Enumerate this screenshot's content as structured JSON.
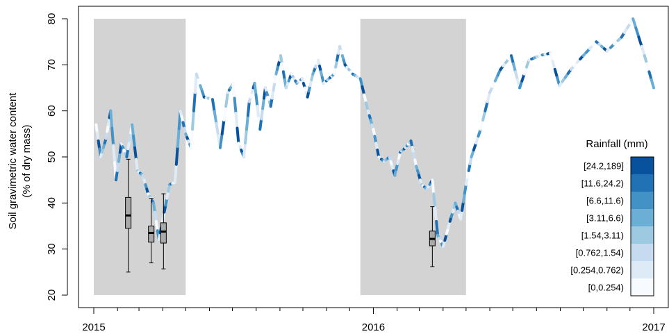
{
  "chart_data": {
    "type": "line",
    "ylabel_line1": "Soil gravimetric water content",
    "ylabel_line2": "(% of dry mass)",
    "ylim": [
      20,
      80
    ],
    "yticks": [
      20,
      30,
      40,
      50,
      60,
      70,
      80
    ],
    "xlim": [
      "2015-01-01",
      "2017-01-01"
    ],
    "xticks": [
      {
        "date": "2015-01-01",
        "label": "2015"
      },
      {
        "date": "2016-01-01",
        "label": "2016"
      },
      {
        "date": "2017-01-01",
        "label": "2017"
      }
    ],
    "shaded_periods": [
      {
        "start": "2015-01-01",
        "end": "2015-05-01",
        "ymin": 20,
        "ymax": 80
      },
      {
        "start": "2015-12-15",
        "end": "2016-05-01",
        "ymin": 20,
        "ymax": 80
      }
    ],
    "series": [
      {
        "points": [
          [
            "2015-01-04",
            57.0
          ],
          [
            "2015-01-10",
            50.0
          ],
          [
            "2015-01-17",
            54.0
          ],
          [
            "2015-01-23",
            60.0
          ],
          [
            "2015-01-30",
            45.0
          ],
          [
            "2015-02-06",
            53.0
          ],
          [
            "2015-02-13",
            50.0
          ],
          [
            "2015-02-20",
            57.0
          ],
          [
            "2015-02-27",
            47.0
          ],
          [
            "2015-03-06",
            46.0
          ],
          [
            "2015-03-13",
            42.0
          ],
          [
            "2015-03-20",
            40.0
          ],
          [
            "2015-03-27",
            32.0
          ],
          [
            "2015-04-03",
            38.0
          ],
          [
            "2015-04-10",
            44.0
          ],
          [
            "2015-04-17",
            44.5
          ],
          [
            "2015-04-24",
            60.0
          ],
          [
            "2015-05-01",
            55.0
          ],
          [
            "2015-05-08",
            52.0
          ],
          [
            "2015-05-15",
            68.0
          ],
          [
            "2015-05-25",
            63.0
          ],
          [
            "2015-06-05",
            62.5
          ],
          [
            "2015-06-15",
            52.0
          ],
          [
            "2015-06-25",
            64.0
          ],
          [
            "2015-07-02",
            66.0
          ],
          [
            "2015-07-09",
            53.0
          ],
          [
            "2015-07-16",
            50.0
          ],
          [
            "2015-07-23",
            62.0
          ],
          [
            "2015-07-30",
            66.0
          ],
          [
            "2015-08-06",
            56.0
          ],
          [
            "2015-08-13",
            65.0
          ],
          [
            "2015-08-20",
            61.0
          ],
          [
            "2015-08-27",
            68.0
          ],
          [
            "2015-09-02",
            72.0
          ],
          [
            "2015-09-09",
            65.0
          ],
          [
            "2015-09-16",
            68.0
          ],
          [
            "2015-09-23",
            66.0
          ],
          [
            "2015-09-30",
            67.0
          ],
          [
            "2015-10-07",
            63.0
          ],
          [
            "2015-10-14",
            68.0
          ],
          [
            "2015-10-21",
            71.0
          ],
          [
            "2015-10-28",
            66.0
          ],
          [
            "2015-11-04",
            67.0
          ],
          [
            "2015-11-11",
            68.0
          ],
          [
            "2015-11-18",
            74.0
          ],
          [
            "2015-11-25",
            70.0
          ],
          [
            "2015-12-05",
            68.0
          ],
          [
            "2015-12-15",
            67.0
          ],
          [
            "2015-12-25",
            60.0
          ],
          [
            "2016-01-01",
            56.0
          ],
          [
            "2016-01-08",
            50.0
          ],
          [
            "2016-01-15",
            49.0
          ],
          [
            "2016-01-22",
            50.0
          ],
          [
            "2016-01-29",
            46.0
          ],
          [
            "2016-02-05",
            51.0
          ],
          [
            "2016-02-12",
            52.0
          ],
          [
            "2016-02-19",
            53.5
          ],
          [
            "2016-02-26",
            48.0
          ],
          [
            "2016-03-04",
            44.0
          ],
          [
            "2016-03-11",
            43.0
          ],
          [
            "2016-03-18",
            45.0
          ],
          [
            "2016-03-25",
            33.0
          ],
          [
            "2016-04-01",
            30.5
          ],
          [
            "2016-04-10",
            36.0
          ],
          [
            "2016-04-17",
            40.0
          ],
          [
            "2016-04-24",
            36.5
          ],
          [
            "2016-05-01",
            44.0
          ],
          [
            "2016-05-08",
            50.0
          ],
          [
            "2016-05-20",
            56.0
          ],
          [
            "2016-06-01",
            64.0
          ],
          [
            "2016-06-15",
            69.0
          ],
          [
            "2016-06-29",
            72.0
          ],
          [
            "2016-07-10",
            65.0
          ],
          [
            "2016-07-22",
            71.0
          ],
          [
            "2016-08-05",
            72.0
          ],
          [
            "2016-08-19",
            72.5
          ],
          [
            "2016-08-31",
            65.5
          ],
          [
            "2016-09-15",
            69.0
          ],
          [
            "2016-10-01",
            72.0
          ],
          [
            "2016-10-18",
            75.0
          ],
          [
            "2016-11-01",
            73.0
          ],
          [
            "2016-11-20",
            76.0
          ],
          [
            "2016-12-05",
            80.0
          ],
          [
            "2016-12-20",
            72.0
          ],
          [
            "2017-01-01",
            65.0
          ]
        ]
      }
    ],
    "rainfall_bins": [
      {
        "label": "[24.2,189]",
        "color": "#08519c"
      },
      {
        "label": "[11.6,24.2)",
        "color": "#2171b5"
      },
      {
        "label": "[6.6,11.6)",
        "color": "#4292c6"
      },
      {
        "label": "[3.11,6.6)",
        "color": "#6baed6"
      },
      {
        "label": "[1.54,3.11)",
        "color": "#9ecae1"
      },
      {
        "label": "[0.762,1.54)",
        "color": "#c6dbef"
      },
      {
        "label": "[0.254,0.762)",
        "color": "#deebf7"
      },
      {
        "label": "[0,0.254)",
        "color": "#f7fbff"
      }
    ],
    "rainfall_sequence": [
      7,
      6,
      0,
      2,
      6,
      4,
      3,
      1,
      5,
      7,
      6,
      0,
      3,
      2,
      6,
      7,
      1,
      5,
      3,
      0,
      6,
      2,
      7,
      4,
      1,
      6,
      5,
      7,
      3,
      2,
      0,
      6,
      4,
      7,
      1,
      3,
      5,
      6,
      2,
      0,
      7,
      4,
      6,
      1,
      3,
      5,
      7,
      2,
      6,
      0
    ],
    "legend": {
      "title": "Rainfall (mm)",
      "position": "right"
    },
    "boxplots": [
      {
        "date": "2015-02-15",
        "min": 25.0,
        "q1": 34.5,
        "median": 37.3,
        "q3": 41.2,
        "max": 49.5
      },
      {
        "date": "2015-03-17",
        "min": 27.0,
        "q1": 31.5,
        "median": 33.5,
        "q3": 35.0,
        "max": 41.0
      },
      {
        "date": "2015-04-02",
        "min": 25.7,
        "q1": 31.3,
        "median": 33.8,
        "q3": 35.7,
        "max": 42.0
      },
      {
        "date": "2016-03-18",
        "min": 26.2,
        "q1": 30.7,
        "median": 32.2,
        "q3": 33.9,
        "max": 39.2
      }
    ],
    "grid": false
  }
}
